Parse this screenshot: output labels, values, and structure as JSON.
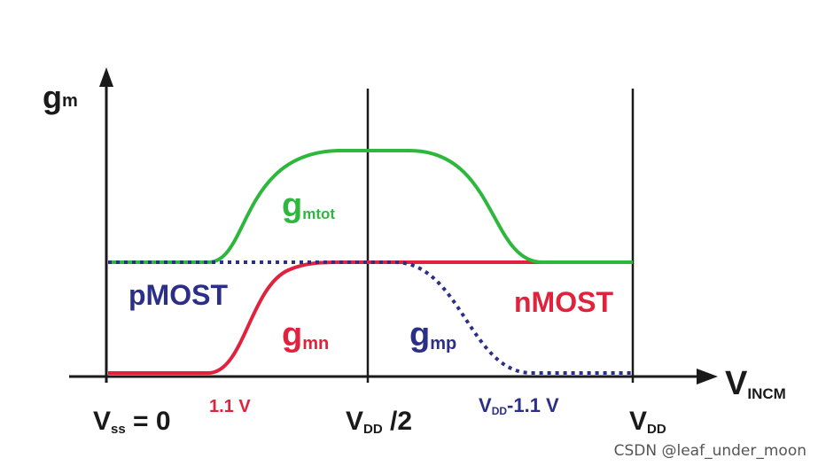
{
  "axis": {
    "y_main": "g",
    "y_sub": "m",
    "x_main": "V",
    "x_sub": "INCM"
  },
  "curves": {
    "gmtot": {
      "main": "g",
      "sub": "mtot",
      "color": "#2db83d"
    },
    "gmn": {
      "main": "g",
      "sub": "mn",
      "color": "#e0223d"
    },
    "gmp": {
      "main": "g",
      "sub": "mp",
      "color": "#2b2f88"
    }
  },
  "regions": {
    "pmost": {
      "text": "pMOST",
      "color": "#2b2f88"
    },
    "nmost": {
      "text": "nMOST",
      "color": "#e0223d"
    }
  },
  "ticks": {
    "vss": {
      "main": "V",
      "sub": "ss",
      "rest": " = 0"
    },
    "vdd_half": {
      "main": "V",
      "sub": "DD",
      "rest": " /2"
    },
    "vdd": {
      "main": "V",
      "sub": "DD"
    },
    "v11": {
      "text": "1.1 V",
      "color": "#e0223d"
    },
    "vdd_minus": {
      "main": "V",
      "sub": "DD",
      "rest": "-1.1 V",
      "color": "#2b2f88"
    }
  },
  "watermark": "CSDN @leaf_under_moon",
  "colors": {
    "axis": "#1a1a1a",
    "background": "#ffffff"
  }
}
